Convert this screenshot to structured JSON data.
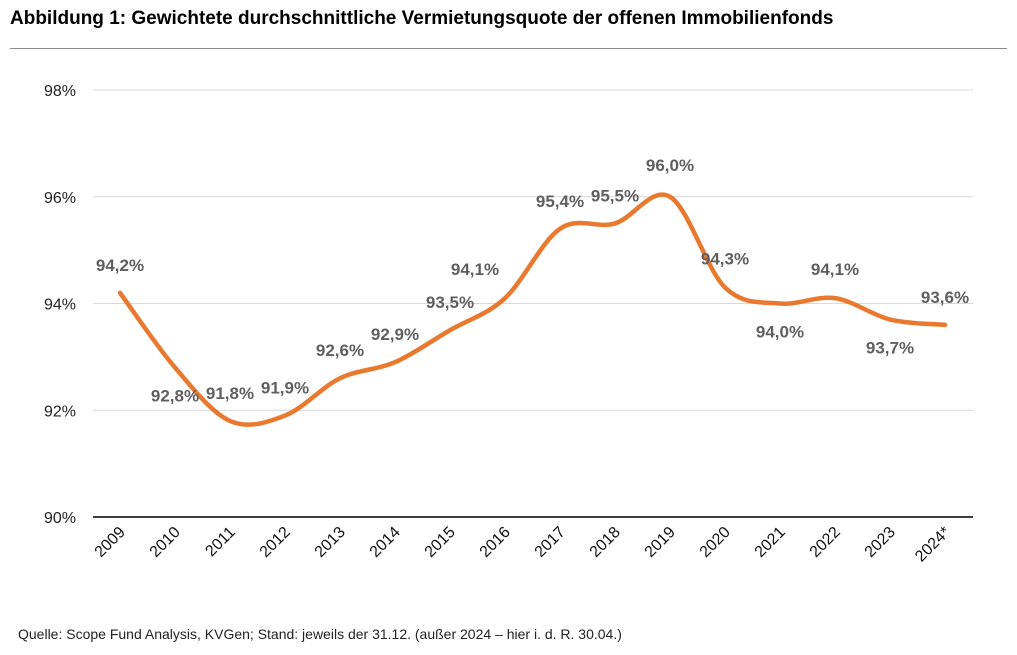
{
  "title": "Abbildung 1: Gewichtete durchschnittliche Vermietungsquote der offenen Immobilienfonds",
  "source": "Quelle: Scope Fund Analysis, KVGen; Stand: jeweils der 31.12. (außer 2024 – hier i. d. R. 30.04.)",
  "colors": {
    "line": "#E8792E",
    "grid": "#d9d9d9",
    "axis": "#000000",
    "label": "#5f5f5f"
  },
  "chart_data": {
    "type": "line",
    "title": "Abbildung 1: Gewichtete durchschnittliche Vermietungsquote der offenen Immobilienfonds",
    "xlabel": "",
    "ylabel": "",
    "ylim": [
      90,
      98
    ],
    "yticks": [
      90,
      92,
      94,
      96,
      98
    ],
    "ytick_labels": [
      "90%",
      "92%",
      "94%",
      "96%",
      "98%"
    ],
    "grid": true,
    "legend": "none",
    "categories": [
      "2009",
      "2010",
      "2011",
      "2012",
      "2013",
      "2014",
      "2015",
      "2016",
      "2017",
      "2018",
      "2019",
      "2020",
      "2021",
      "2022",
      "2023",
      "2024*"
    ],
    "series": [
      {
        "name": "Vermietungsquote",
        "values": [
          94.2,
          92.8,
          91.8,
          91.9,
          92.6,
          92.9,
          93.5,
          94.1,
          95.4,
          95.5,
          96.0,
          94.3,
          94.0,
          94.1,
          93.7,
          93.6
        ],
        "labels": [
          "94,2%",
          "92,8%",
          "91,8%",
          "91,9%",
          "92,6%",
          "92,9%",
          "93,5%",
          "94,1%",
          "95,4%",
          "95,5%",
          "96,0%",
          "94,3%",
          "94,0%",
          "94,1%",
          "93,7%",
          "93,6%"
        ]
      }
    ]
  }
}
